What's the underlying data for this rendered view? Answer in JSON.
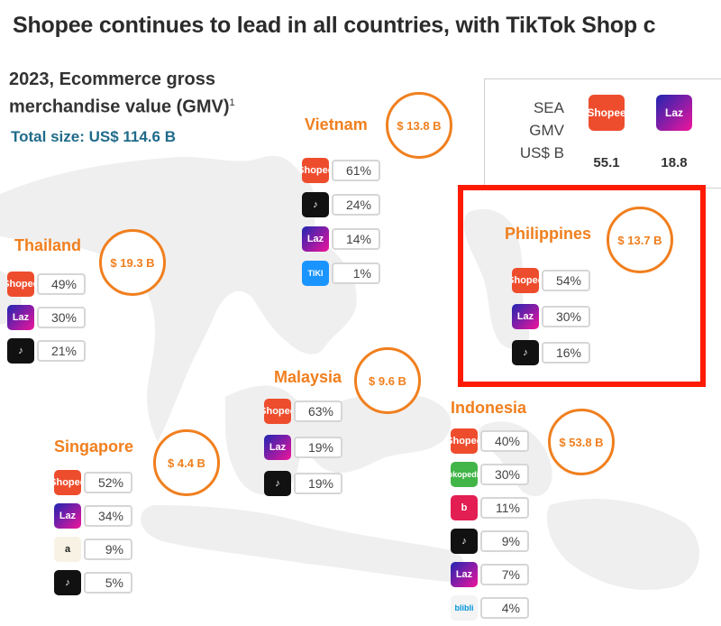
{
  "title": "Shopee continues to lead in all countries, with TikTok Shop c",
  "subtitle_line1": "2023, Ecommerce gross",
  "subtitle_line2": "merchandise value (GMV)",
  "subtitle_sup": "1",
  "total": "Total size: US$ 114.6 B",
  "colors": {
    "accent": "#f07f1e",
    "total_text": "#1f6b8a",
    "highlight": "#ff1a00"
  },
  "sea": {
    "label_lines": [
      "SEA",
      "GMV",
      "US$ B"
    ],
    "brands": [
      {
        "icon": "shopee-icon",
        "text": "Shopee",
        "value": "55.1"
      },
      {
        "icon": "lazada-icon",
        "text": "Laz",
        "value": "18.8"
      }
    ]
  },
  "chart_data": {
    "type": "table",
    "countries": [
      {
        "name": "Vietnam",
        "gmv": "$ 13.8 B",
        "shares": [
          {
            "icon": "shopee-icon",
            "text": "Shopee",
            "pct": "61%"
          },
          {
            "icon": "tiktok-icon",
            "text": "♪",
            "pct": "24%"
          },
          {
            "icon": "lazada-icon",
            "text": "Laz",
            "pct": "14%"
          },
          {
            "icon": "tiki-icon",
            "text": "TIKI",
            "pct": "1%"
          }
        ]
      },
      {
        "name": "Thailand",
        "gmv": "$ 19.3 B",
        "shares": [
          {
            "icon": "shopee-icon",
            "text": "Shopee",
            "pct": "49%"
          },
          {
            "icon": "lazada-icon",
            "text": "Laz",
            "pct": "30%"
          },
          {
            "icon": "tiktok-icon",
            "text": "♪",
            "pct": "21%"
          }
        ]
      },
      {
        "name": "Philippines",
        "gmv": "$ 13.7 B",
        "shares": [
          {
            "icon": "shopee-icon",
            "text": "Shopee",
            "pct": "54%"
          },
          {
            "icon": "lazada-icon",
            "text": "Laz",
            "pct": "30%"
          },
          {
            "icon": "tiktok-icon",
            "text": "♪",
            "pct": "16%"
          }
        ]
      },
      {
        "name": "Malaysia",
        "gmv": "$ 9.6 B",
        "shares": [
          {
            "icon": "shopee-icon",
            "text": "Shopee",
            "pct": "63%"
          },
          {
            "icon": "lazada-icon",
            "text": "Laz",
            "pct": "19%"
          },
          {
            "icon": "tiktok-icon",
            "text": "♪",
            "pct": "19%"
          }
        ]
      },
      {
        "name": "Indonesia",
        "gmv": "$ 53.8 B",
        "shares": [
          {
            "icon": "shopee-icon",
            "text": "Shopee",
            "pct": "40%"
          },
          {
            "icon": "tokopedia-icon",
            "text": "tokopedia",
            "pct": "30%"
          },
          {
            "icon": "bukalapak-icon",
            "text": "b",
            "pct": "11%"
          },
          {
            "icon": "tiktok-icon",
            "text": "♪",
            "pct": "9%"
          },
          {
            "icon": "lazada-icon",
            "text": "Laz",
            "pct": "7%"
          },
          {
            "icon": "blibli-icon",
            "text": "blibli",
            "pct": "4%"
          }
        ]
      },
      {
        "name": "Singapore",
        "gmv": "$ 4.4 B",
        "shares": [
          {
            "icon": "shopee-icon",
            "text": "Shopee",
            "pct": "52%"
          },
          {
            "icon": "lazada-icon",
            "text": "Laz",
            "pct": "34%"
          },
          {
            "icon": "amazon-icon",
            "text": "a",
            "pct": "9%"
          },
          {
            "icon": "tiktok-icon",
            "text": "♪",
            "pct": "5%"
          }
        ]
      }
    ]
  }
}
